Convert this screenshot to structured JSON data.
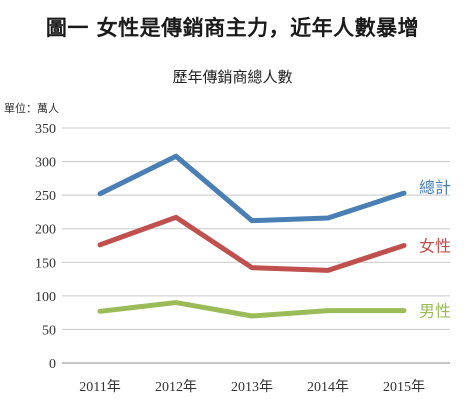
{
  "headline": "圖一 女性是傳銷商主力，近年人數暴增",
  "unit_label": "單位：萬人",
  "chart_data": {
    "type": "line",
    "title": "歷年傳銷商總人數",
    "xlabel": "",
    "ylabel": "",
    "categories": [
      "2011年",
      "2012年",
      "2013年",
      "2014年",
      "2015年"
    ],
    "ylim": [
      0,
      350
    ],
    "yticks": [
      0,
      50,
      100,
      150,
      200,
      250,
      300,
      350
    ],
    "grid": true,
    "legend": "inline-right",
    "series": [
      {
        "name": "總計",
        "color": "#4a7fb5",
        "values": [
          252,
          308,
          212,
          216,
          253
        ]
      },
      {
        "name": "女性",
        "color": "#c0504d",
        "values": [
          176,
          217,
          142,
          138,
          175
        ]
      },
      {
        "name": "男性",
        "color": "#9bbb59",
        "values": [
          77,
          90,
          70,
          78,
          78
        ]
      }
    ]
  }
}
